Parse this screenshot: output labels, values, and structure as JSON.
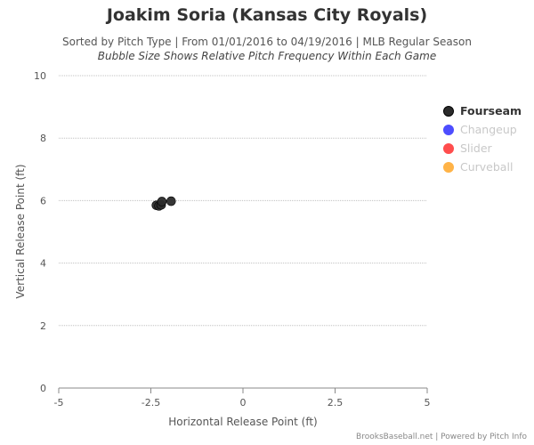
{
  "header": {
    "title": "Joakim Soria (Kansas City Royals)",
    "subtitle": "Sorted by Pitch Type | From 01/01/2016 to 04/19/2016 | MLB Regular Season",
    "subtitle2": "Bubble Size Shows Relative Pitch Frequency Within Each Game"
  },
  "credit": "BrooksBaseball.net | Powered by Pitch Info",
  "chart_data": {
    "type": "scatter",
    "xlabel": "Horizontal Release Point (ft)",
    "ylabel": "Vertical Release Point (ft)",
    "xlim": [
      -5,
      5
    ],
    "ylim": [
      0,
      10
    ],
    "xticks": [
      "-5",
      "-2.5",
      "0",
      "2.5",
      "5"
    ],
    "yticks": [
      "0",
      "2",
      "4",
      "6",
      "8",
      "10"
    ],
    "grid": "horizontal",
    "legend_position": "right",
    "series": [
      {
        "name": "Fourseam",
        "color": "#2b2b2b",
        "active": true,
        "points": [
          {
            "x": -2.35,
            "y": 5.85,
            "size": 1.0
          },
          {
            "x": -2.28,
            "y": 5.83,
            "size": 1.0
          },
          {
            "x": -2.22,
            "y": 5.86,
            "size": 1.0
          },
          {
            "x": -2.2,
            "y": 5.97,
            "size": 1.0
          },
          {
            "x": -1.95,
            "y": 5.98,
            "size": 1.0
          }
        ]
      },
      {
        "name": "Changeup",
        "color": "#4d4dff",
        "active": false,
        "points": []
      },
      {
        "name": "Slider",
        "color": "#ff4d4d",
        "active": false,
        "points": []
      },
      {
        "name": "Curveball",
        "color": "#ffb347",
        "active": false,
        "points": []
      }
    ]
  }
}
